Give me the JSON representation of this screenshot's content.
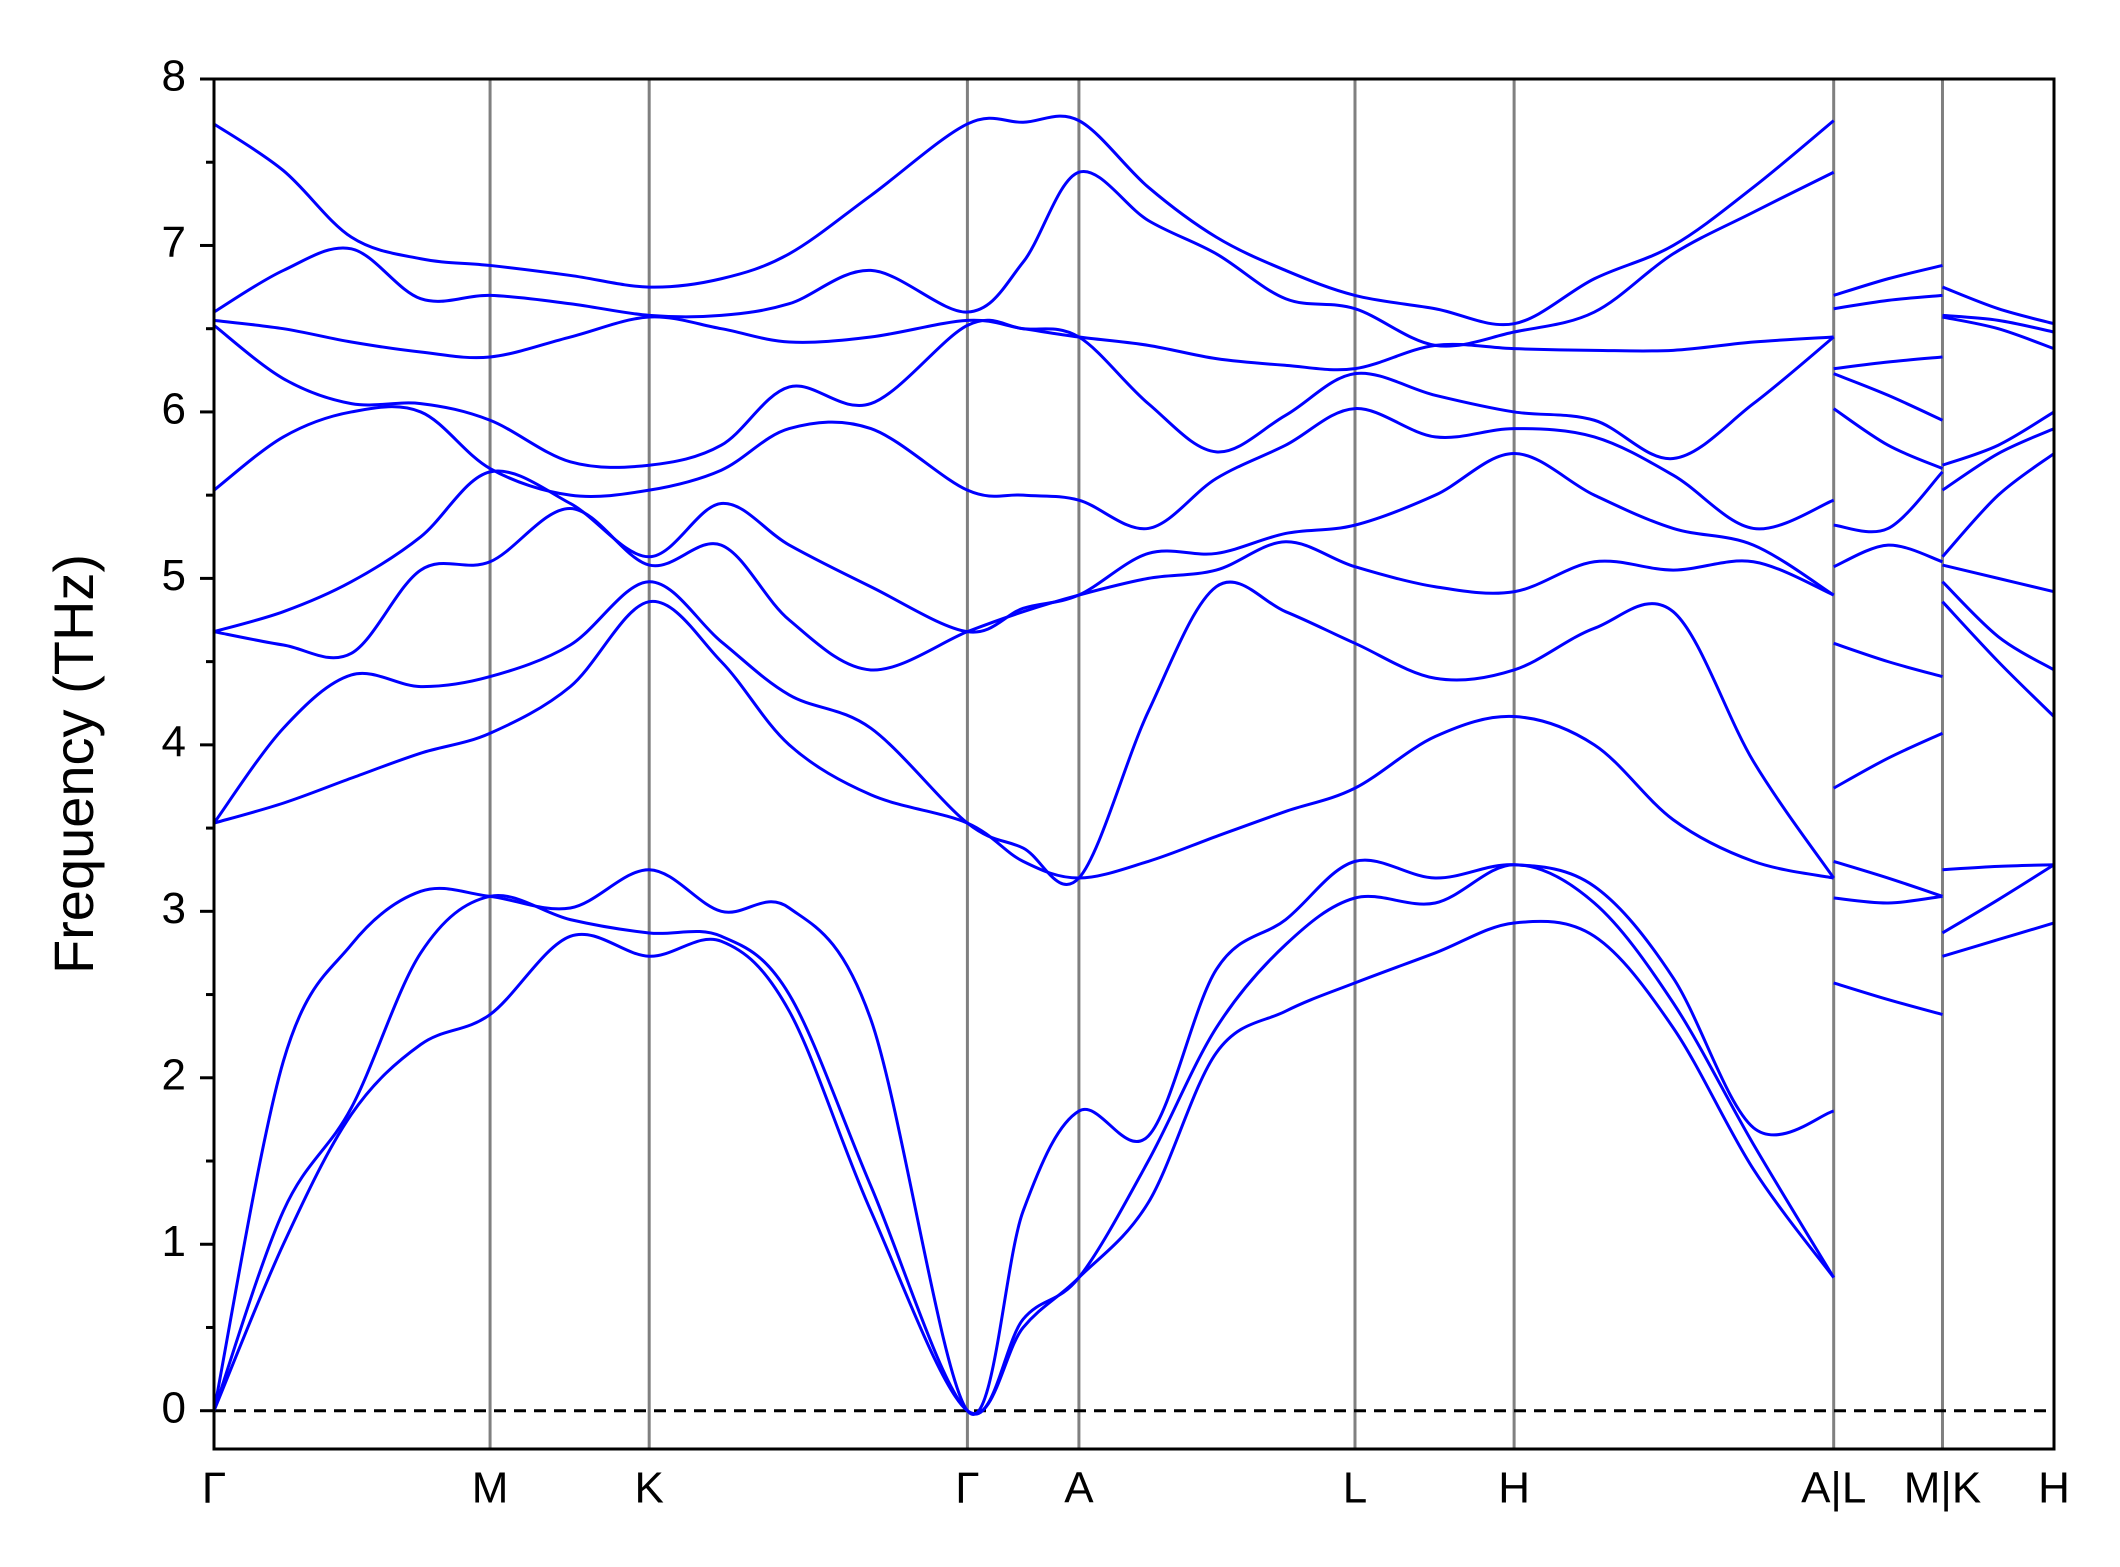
{
  "chart_data": {
    "type": "line",
    "ylabel": "Frequency (THz)",
    "xlim": [
      0,
      13.53
    ],
    "ylim": [
      -0.23,
      8
    ],
    "xticks": [
      {
        "value": 0,
        "label": "Γ"
      },
      {
        "value": 2.03,
        "label": "M"
      },
      {
        "value": 3.2,
        "label": "K"
      },
      {
        "value": 5.54,
        "label": "Γ"
      },
      {
        "value": 6.36,
        "label": "A"
      },
      {
        "value": 8.39,
        "label": "L"
      },
      {
        "value": 9.56,
        "label": "H"
      },
      {
        "value": 11.91,
        "label": "A|L"
      },
      {
        "value": 12.71,
        "label": "M|K"
      },
      {
        "value": 13.53,
        "label": "H"
      }
    ],
    "yticks": [
      0,
      1,
      2,
      3,
      4,
      5,
      6,
      7,
      8
    ],
    "yminor_ticks": [
      0.5,
      1.5,
      2.5,
      3.5,
      4.5,
      5.5,
      6.5,
      7.5
    ],
    "vline_color": "#808080",
    "hline": {
      "y": 0,
      "color": "#000000",
      "dashed": true
    },
    "x": [
      0,
      0.51,
      1.01,
      1.52,
      2.03,
      2.62,
      3.2,
      3.73,
      4.23,
      4.83,
      5.54,
      5.95,
      6.36,
      6.87,
      7.37,
      7.88,
      8.39,
      8.98,
      9.56,
      10.15,
      10.73,
      11.32,
      11.91,
      null,
      11.91,
      12.31,
      12.71,
      null,
      12.71,
      13.12,
      13.53
    ],
    "series": [
      {
        "color": "#0000ff",
        "values": [
          0,
          1.0,
          1.78,
          2.2,
          2.38,
          2.85,
          2.73,
          2.82,
          2.4,
          1.2,
          0,
          0.5,
          0.8,
          1.25,
          2.15,
          2.4,
          2.57,
          2.75,
          2.93,
          2.85,
          2.3,
          1.45,
          0.8,
          null,
          2.57,
          2.47,
          2.38,
          null,
          2.73,
          2.83,
          2.93
        ]
      },
      {
        "color": "#0000ff",
        "values": [
          0,
          1.2,
          1.82,
          2.75,
          3.09,
          2.95,
          2.87,
          2.85,
          2.5,
          1.35,
          0,
          0.55,
          0.8,
          1.5,
          2.3,
          2.8,
          3.08,
          3.05,
          3.28,
          3.05,
          2.45,
          1.6,
          0.8,
          null,
          3.08,
          3.05,
          3.09,
          null,
          2.87,
          3.07,
          3.28
        ]
      },
      {
        "color": "#0000ff",
        "values": [
          0,
          2.1,
          2.8,
          3.12,
          3.09,
          3.02,
          3.25,
          3.0,
          3.02,
          2.35,
          0,
          1.2,
          1.8,
          1.65,
          2.65,
          2.95,
          3.3,
          3.2,
          3.28,
          3.15,
          2.6,
          1.7,
          1.8,
          null,
          3.3,
          3.2,
          3.09,
          null,
          3.25,
          3.27,
          3.28
        ]
      },
      {
        "color": "#0000ff",
        "values": [
          3.53,
          3.65,
          3.8,
          3.95,
          4.07,
          4.35,
          4.86,
          4.5,
          4.0,
          3.7,
          3.53,
          3.3,
          3.2,
          3.3,
          3.45,
          3.6,
          3.74,
          4.05,
          4.17,
          4.0,
          3.55,
          3.3,
          3.2,
          null,
          3.74,
          3.92,
          4.07,
          null,
          4.86,
          4.5,
          4.17
        ]
      },
      {
        "color": "#0000ff",
        "values": [
          3.53,
          4.1,
          4.42,
          4.35,
          4.41,
          4.6,
          4.98,
          4.62,
          4.3,
          4.1,
          3.53,
          3.38,
          3.2,
          4.2,
          4.95,
          4.8,
          4.61,
          4.4,
          4.45,
          4.7,
          4.8,
          3.9,
          3.2,
          null,
          4.61,
          4.5,
          4.41,
          null,
          4.98,
          4.65,
          4.45
        ]
      },
      {
        "color": "#0000ff",
        "values": [
          4.68,
          4.6,
          4.55,
          5.05,
          5.1,
          5.42,
          5.08,
          5.2,
          4.75,
          4.45,
          4.68,
          4.8,
          4.9,
          5.0,
          5.05,
          5.22,
          5.07,
          4.95,
          4.92,
          5.1,
          5.05,
          5.1,
          4.9,
          null,
          5.07,
          5.2,
          5.1,
          null,
          5.08,
          5.0,
          4.92
        ]
      },
      {
        "color": "#0000ff",
        "values": [
          4.68,
          4.8,
          4.98,
          5.25,
          5.64,
          5.45,
          5.13,
          5.45,
          5.2,
          4.95,
          4.68,
          4.82,
          4.9,
          5.15,
          5.15,
          5.27,
          5.32,
          5.5,
          5.75,
          5.5,
          5.3,
          5.2,
          4.9,
          null,
          5.32,
          5.3,
          5.64,
          null,
          5.13,
          5.5,
          5.75
        ]
      },
      {
        "color": "#0000ff",
        "values": [
          5.53,
          5.85,
          6.0,
          6.0,
          5.66,
          5.5,
          5.53,
          5.65,
          5.9,
          5.9,
          5.53,
          5.5,
          5.47,
          5.3,
          5.6,
          5.8,
          6.02,
          5.85,
          5.9,
          5.85,
          5.62,
          5.3,
          5.47,
          null,
          6.02,
          5.8,
          5.66,
          null,
          5.53,
          5.75,
          5.9
        ]
      },
      {
        "color": "#0000ff",
        "values": [
          6.52,
          6.2,
          6.05,
          6.05,
          5.95,
          5.7,
          5.68,
          5.8,
          6.15,
          6.05,
          6.52,
          6.5,
          6.45,
          6.05,
          5.76,
          5.98,
          6.23,
          6.1,
          6.0,
          5.95,
          5.72,
          6.05,
          6.45,
          null,
          6.23,
          6.1,
          5.95,
          null,
          5.68,
          5.8,
          6.0
        ]
      },
      {
        "color": "#0000ff",
        "values": [
          6.55,
          6.5,
          6.42,
          6.36,
          6.33,
          6.45,
          6.57,
          6.5,
          6.42,
          6.45,
          6.55,
          6.5,
          6.45,
          6.4,
          6.32,
          6.28,
          6.26,
          6.4,
          6.38,
          6.37,
          6.37,
          6.42,
          6.45,
          null,
          6.26,
          6.3,
          6.33,
          null,
          6.57,
          6.5,
          6.38
        ]
      },
      {
        "color": "#0000ff",
        "values": [
          6.6,
          6.85,
          6.98,
          6.68,
          6.7,
          6.65,
          6.58,
          6.58,
          6.65,
          6.85,
          6.6,
          6.9,
          7.44,
          7.15,
          6.95,
          6.68,
          6.62,
          6.4,
          6.48,
          6.6,
          6.95,
          7.2,
          7.44,
          null,
          6.62,
          6.67,
          6.7,
          null,
          6.58,
          6.55,
          6.48
        ]
      },
      {
        "color": "#0000ff",
        "values": [
          7.73,
          7.45,
          7.05,
          6.92,
          6.88,
          6.82,
          6.75,
          6.8,
          6.95,
          7.3,
          7.73,
          7.74,
          7.75,
          7.35,
          7.05,
          6.85,
          6.7,
          6.62,
          6.53,
          6.8,
          7.0,
          7.35,
          7.75,
          null,
          6.7,
          6.8,
          6.88,
          null,
          6.75,
          6.62,
          6.53
        ]
      }
    ]
  }
}
